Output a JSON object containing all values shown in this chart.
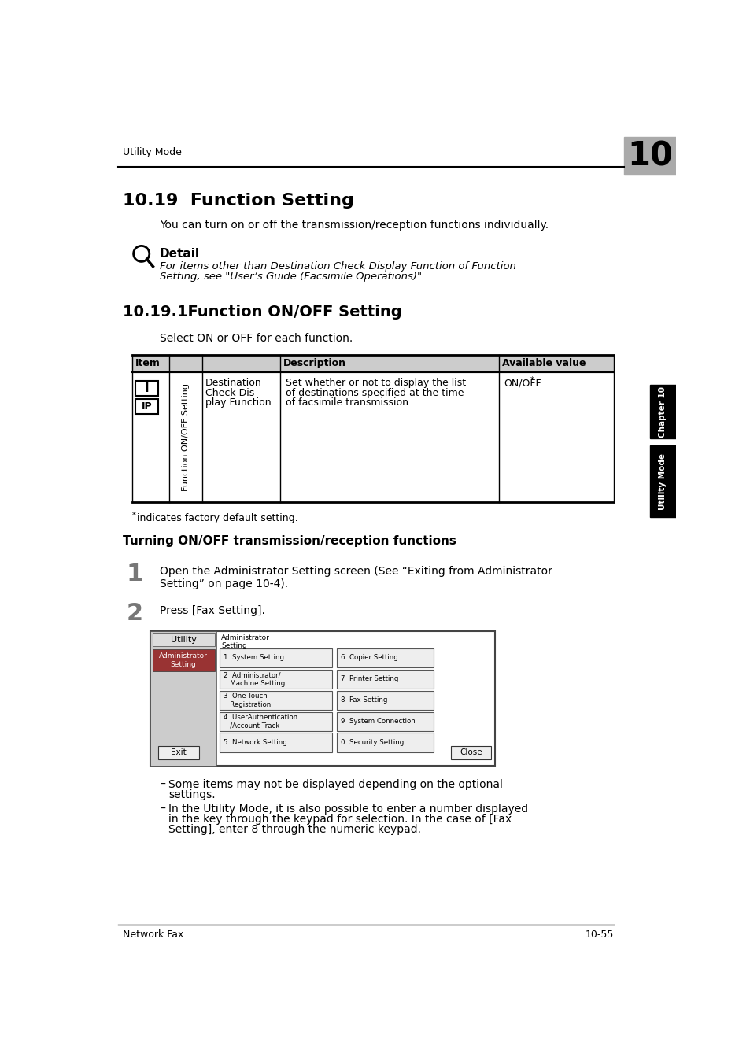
{
  "page_header_left": "Utility Mode",
  "page_number": "10",
  "section_title": "10.19  Function Setting",
  "intro_text": "You can turn on or off the transmission/reception functions individually.",
  "detail_label": "Detail",
  "detail_italic_line1": "For items other than Destination Check Display Function of Function",
  "detail_italic_line2": "Setting, see \"User’s Guide (Facsimile Operations)\".",
  "subsection_title": "10.19.1Function ON/OFF Setting",
  "subsection_intro": "Select ON or OFF for each function.",
  "table_headers": [
    "Item",
    "Description",
    "Available value"
  ],
  "table_col1_sub": "Function ON/OFF Setting",
  "table_item_line1": "Destination",
  "table_item_line2": "Check Dis-",
  "table_item_line3": "play Function",
  "table_desc_line1": "Set whether or not to display the list",
  "table_desc_line2": "of destinations specified at the time",
  "table_desc_line3": "of facsimile transmission.",
  "table_avail": "ON/OFF",
  "footnote": "indicates factory default setting.",
  "turning_title": "Turning ON/OFF transmission/reception functions",
  "step1_num": "1",
  "step1_text": "Open the Administrator Setting screen (See “Exiting from Administrator\nSetting” on page 10-4).",
  "step2_num": "2",
  "step2_text": "Press [Fax Setting].",
  "bullet1_line1": "Some items may not be displayed depending on the optional",
  "bullet1_line2": "settings.",
  "bullet2_line1": "In the Utility Mode, it is also possible to enter a number displayed",
  "bullet2_line2": "in the key through the keypad for selection. In the case of [Fax",
  "bullet2_line3": "Setting], enter 8 through the numeric keypad.",
  "footer_left": "Network Fax",
  "footer_right": "10-55",
  "right_tab_ch": "Chapter 10",
  "right_tab_um": "Utility Mode",
  "bg_color": "#ffffff",
  "table_header_bg": "#cccccc",
  "screen_btn_labels_left": [
    "1  System Setting",
    "2  Administrator/\n   Machine Setting",
    "3  One-Touch\n   Registration",
    "4  UserAuthentication\n   /Account Track",
    "5  Network Setting"
  ],
  "screen_btn_labels_right": [
    "6  Copier Setting",
    "7  Printer Setting",
    "8  Fax Setting",
    "9  System Connection",
    "0  Security Setting"
  ]
}
